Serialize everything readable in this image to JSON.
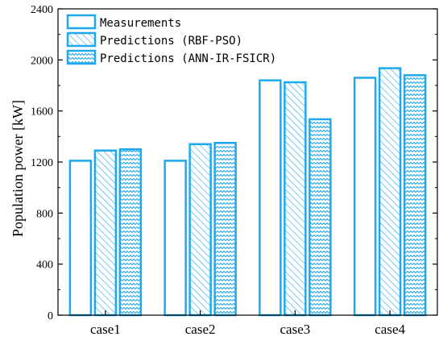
{
  "chart_data": {
    "type": "bar",
    "title": "",
    "xlabel": "",
    "ylabel": "Population power [kW]",
    "categories": [
      "case1",
      "case2",
      "case3",
      "case4"
    ],
    "ylim": [
      0,
      2400
    ],
    "yticks": [
      0,
      400,
      800,
      1200,
      1600,
      2000,
      2400
    ],
    "grid": false,
    "legend_position": "top-left",
    "series": [
      {
        "name": "Measurements",
        "values": [
          1210,
          1210,
          1840,
          1860
        ],
        "pattern": "solid-white"
      },
      {
        "name": "Predictions (RBF-PSO)",
        "values": [
          1290,
          1340,
          1825,
          1935
        ],
        "pattern": "diagonal-hatch"
      },
      {
        "name": "Predictions (ANN-IR-FSICR)",
        "values": [
          1300,
          1350,
          1535,
          1880
        ],
        "pattern": "wave"
      }
    ],
    "colors": {
      "bar_stroke": "#1ea9ec",
      "axis": "#000000",
      "background": "#ffffff"
    }
  }
}
